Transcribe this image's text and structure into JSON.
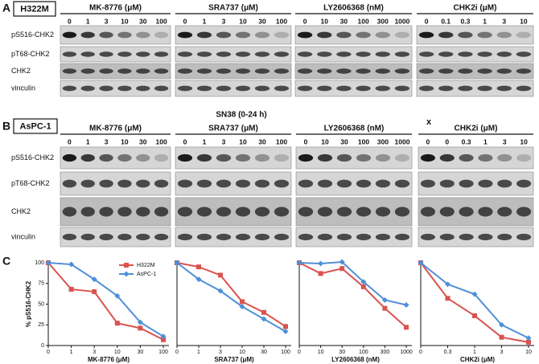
{
  "panel_a": {
    "label": "A",
    "cell_line": "H322M",
    "rows": [
      "pS516-CHK2",
      "pT68-CHK2",
      "CHK2",
      "vinculin"
    ],
    "groups": [
      {
        "title": "MK-8776 (μM)",
        "lanes": [
          "0",
          "1",
          "3",
          "10",
          "30",
          "100"
        ]
      },
      {
        "title": "SRA737 (μM)",
        "lanes": [
          "0",
          "1",
          "3",
          "10",
          "30",
          "100"
        ]
      },
      {
        "title": "LY2606368 (nM)",
        "lanes": [
          "0",
          "10",
          "30",
          "100",
          "300",
          "1000"
        ]
      },
      {
        "title": "CHK2i (μM)",
        "lanes": [
          "0",
          "0.1",
          "0.3",
          "1",
          "3",
          "10"
        ]
      }
    ]
  },
  "panel_b": {
    "label": "B",
    "cell_line": "AsPC-1",
    "treatment": "SN38 (0-24 h)",
    "marker": "x",
    "rows": [
      "pS516-CHK2",
      "pT68-CHK2",
      "CHK2",
      "vinculin"
    ],
    "groups": [
      {
        "title": "MK-8776 (μM)",
        "lanes": [
          "0",
          "1",
          "3",
          "10",
          "30",
          "100"
        ]
      },
      {
        "title": "SRA737 (μM)",
        "lanes": [
          "0",
          "1",
          "3",
          "10",
          "30",
          "100"
        ]
      },
      {
        "title": "LY2606368 (nM)",
        "lanes": [
          "0",
          "10",
          "30",
          "100",
          "300",
          "1000"
        ]
      },
      {
        "title": "CHK2i (μM)",
        "lanes": [
          "0",
          "0",
          "0.3",
          "1",
          "3",
          "10"
        ]
      }
    ]
  },
  "panel_c_label": "C",
  "chart_data": [
    {
      "type": "line",
      "ylabel": "% pS516-CHK2",
      "xlabel": "MK-8776 (μM)",
      "categories": [
        "0",
        "1",
        "3",
        "10",
        "30",
        "100"
      ],
      "ylim": [
        0,
        100
      ],
      "yticks": [
        0,
        25,
        50,
        75,
        100
      ],
      "legend": "upper right",
      "series": [
        {
          "name": "H322M",
          "color": "#d9534f",
          "marker": "square",
          "values": [
            100,
            68,
            65,
            27,
            21,
            7
          ]
        },
        {
          "name": "AsPC-1",
          "color": "#4f8fd8",
          "marker": "diamond",
          "values": [
            100,
            98,
            80,
            60,
            28,
            11
          ]
        }
      ]
    },
    {
      "type": "line",
      "xlabel": "SRA737 (μM)",
      "categories": [
        "0",
        "1",
        "3",
        "10",
        "30",
        "100"
      ],
      "ylim": [
        0,
        100
      ],
      "series": [
        {
          "color": "#d9534f",
          "marker": "square",
          "values": [
            100,
            95,
            85,
            53,
            40,
            23
          ]
        },
        {
          "color": "#4f8fd8",
          "marker": "diamond",
          "values": [
            100,
            80,
            66,
            47,
            32,
            17
          ]
        }
      ]
    },
    {
      "type": "line",
      "xlabel": "LY2606368 (nM)",
      "categories": [
        "0",
        "10",
        "30",
        "100",
        "300",
        "1000"
      ],
      "ylim": [
        0,
        100
      ],
      "series": [
        {
          "color": "#d9534f",
          "marker": "square",
          "values": [
            100,
            87,
            93,
            71,
            45,
            22
          ]
        },
        {
          "color": "#4f8fd8",
          "marker": "diamond",
          "values": [
            100,
            99,
            101,
            77,
            55,
            49
          ]
        }
      ]
    },
    {
      "type": "line",
      "xlabel": "CHK2i (μM)",
      "categories": [
        "0",
        "0.3",
        "1",
        "3",
        "10"
      ],
      "ylim": [
        0,
        100
      ],
      "series": [
        {
          "color": "#d9534f",
          "marker": "square",
          "values": [
            100,
            57,
            36,
            10,
            4
          ]
        },
        {
          "color": "#4f8fd8",
          "marker": "diamond",
          "values": [
            100,
            74,
            62,
            25,
            9
          ]
        }
      ]
    }
  ]
}
